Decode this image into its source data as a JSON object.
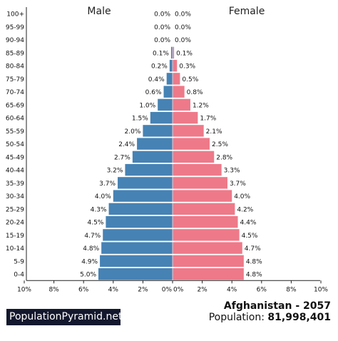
{
  "chart_data": {
    "type": "bar",
    "orientation": "horizontal-population-pyramid",
    "left_label": "Male",
    "right_label": "Female",
    "categories": [
      "100+",
      "95-99",
      "90-94",
      "85-89",
      "80-84",
      "75-79",
      "70-74",
      "65-69",
      "60-64",
      "55-59",
      "50-54",
      "45-49",
      "40-44",
      "35-39",
      "30-34",
      "25-29",
      "20-24",
      "15-19",
      "10-14",
      "5-9",
      "0-4"
    ],
    "series": [
      {
        "name": "Male",
        "color": "#4682b4",
        "values": [
          0.0,
          0.0,
          0.0,
          0.1,
          0.2,
          0.4,
          0.6,
          1.0,
          1.5,
          2.0,
          2.4,
          2.7,
          3.2,
          3.7,
          4.0,
          4.3,
          4.5,
          4.7,
          4.8,
          4.9,
          5.0
        ],
        "labels": [
          "0.0%",
          "0.0%",
          "0.0%",
          "0.1%",
          "0.2%",
          "0.4%",
          "0.6%",
          "1.0%",
          "1.5%",
          "2.0%",
          "2.4%",
          "2.7%",
          "3.2%",
          "3.7%",
          "4.0%",
          "4.3%",
          "4.5%",
          "4.7%",
          "4.8%",
          "4.9%",
          "5.0%"
        ]
      },
      {
        "name": "Female",
        "color": "#ee7989",
        "values": [
          0.0,
          0.0,
          0.0,
          0.1,
          0.3,
          0.5,
          0.8,
          1.2,
          1.7,
          2.1,
          2.5,
          2.8,
          3.3,
          3.7,
          4.0,
          4.2,
          4.4,
          4.5,
          4.7,
          4.8,
          4.8
        ],
        "labels": [
          "0.0%",
          "0.0%",
          "0.0%",
          "0.1%",
          "0.3%",
          "0.5%",
          "0.8%",
          "1.2%",
          "1.7%",
          "2.1%",
          "2.5%",
          "2.8%",
          "3.3%",
          "3.7%",
          "4.0%",
          "4.2%",
          "4.4%",
          "4.5%",
          "4.7%",
          "4.8%",
          "4.8%"
        ]
      }
    ],
    "xlim": [
      0,
      10
    ],
    "left_ticks": [
      "10%",
      "8%",
      "6%",
      "4%",
      "2%",
      "0%"
    ],
    "right_ticks": [
      "0%",
      "2%",
      "4%",
      "6%",
      "8%",
      "10%"
    ],
    "grid": false
  },
  "branding": {
    "site": "PopulationPyramid.net"
  },
  "info": {
    "title": "Afghanistan - 2057",
    "population_label": "Population:",
    "population_value": "81,998,401"
  }
}
